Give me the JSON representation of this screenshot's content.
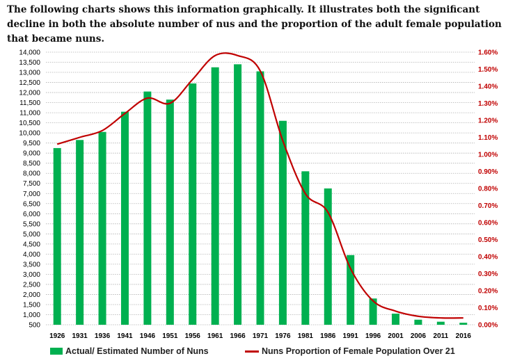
{
  "intro_text": "The following charts shows this information graphically. It illustrates both the significant decline in both the absolute number of nus and the proportion of the adult female population that became nuns.",
  "colors": {
    "bars": "#00b050",
    "line": "#c00000",
    "grid": "#b0b0b0"
  },
  "chart_data": {
    "type": "bar",
    "categories": [
      "1926",
      "1931",
      "1936",
      "1941",
      "1946",
      "1951",
      "1956",
      "1961",
      "1966",
      "1971",
      "1976",
      "1981",
      "1986",
      "1991",
      "1996",
      "2001",
      "2006",
      "2011",
      "2016"
    ],
    "series": [
      {
        "name": "Actual/ Estimated Number of Nuns",
        "type": "bar",
        "axis": "left",
        "values": [
          9250,
          9650,
          10050,
          11050,
          12050,
          11650,
          12450,
          13250,
          13400,
          13050,
          10600,
          8100,
          7250,
          3950,
          1800,
          1050,
          750,
          650,
          600
        ]
      },
      {
        "name": "Nuns Proportion of Female Population Over 21",
        "type": "line",
        "axis": "right",
        "values": [
          1.06,
          1.1,
          1.14,
          1.24,
          1.33,
          1.3,
          1.44,
          1.58,
          1.58,
          1.49,
          1.08,
          0.77,
          0.66,
          0.33,
          0.14,
          0.08,
          0.05,
          0.04,
          0.04
        ]
      }
    ],
    "y_left": {
      "min": 500,
      "max": 14000,
      "ticks": [
        "500",
        "1,000",
        "1,500",
        "2,000",
        "2,500",
        "3,000",
        "3,500",
        "4,000",
        "4,500",
        "5,000",
        "5,500",
        "6,000",
        "6,500",
        "7,000",
        "7,500",
        "8,000",
        "8,500",
        "9,000",
        "9,500",
        "10,000",
        "10,500",
        "11,000",
        "11,500",
        "12,000",
        "12,500",
        "13,000",
        "13,500",
        "14,000"
      ]
    },
    "y_right": {
      "min": 0,
      "max": 1.6,
      "ticks": [
        "0.00%",
        "0.10%",
        "0.20%",
        "0.30%",
        "0.40%",
        "0.50%",
        "0.60%",
        "0.70%",
        "0.80%",
        "0.90%",
        "1.00%",
        "1.10%",
        "1.20%",
        "1.30%",
        "1.40%",
        "1.50%",
        "1.60%"
      ]
    },
    "grid": true,
    "legend_position": "bottom"
  },
  "legend": {
    "bars_label": "Actual/ Estimated Number of Nuns",
    "line_label": "Nuns Proportion of Female Population Over 21"
  }
}
